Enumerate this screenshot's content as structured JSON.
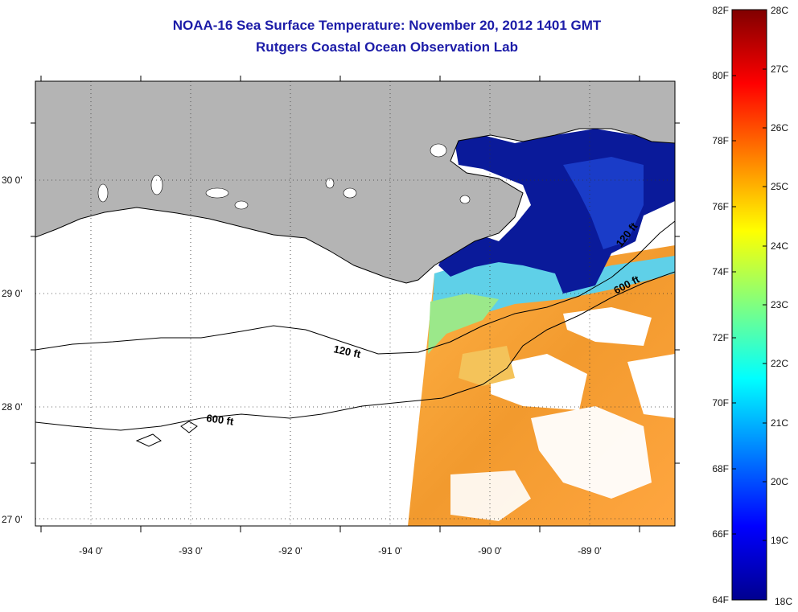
{
  "title": {
    "line1": "NOAA-16 Sea Surface Temperature:  November 20, 2012 1401 GMT",
    "line2": "Rutgers Coastal Ocean Observation Lab"
  },
  "map": {
    "lat_labels": [
      "30 0'",
      "29 0'",
      "28 0'",
      "27 0'"
    ],
    "lon_labels": [
      "-94 0'",
      "-93 0'",
      "-92 0'",
      "-91 0'",
      "-90 0'",
      "-89 0'"
    ],
    "contour_labels": {
      "shelf_120_west": "120 ft",
      "shelf_600_west": "600 ft",
      "shelf_120_east": "120 ft",
      "shelf_600_east": "600 ft"
    },
    "colors": {
      "land": "#b4b4b4",
      "coast": "#000000",
      "no_data": "#ffffff"
    }
  },
  "colorbar": {
    "fahrenheit_labels": [
      "82F",
      "80F",
      "78F",
      "76F",
      "74F",
      "72F",
      "70F",
      "68F",
      "66F",
      "64F"
    ],
    "celsius_labels": [
      "28C",
      "27C",
      "26C",
      "25C",
      "24C",
      "23C",
      "22C",
      "21C",
      "20C",
      "19C",
      "18C"
    ],
    "range_f": [
      64,
      82
    ],
    "range_c": [
      18,
      28
    ],
    "colormap": [
      "#00008f",
      "#0000ff",
      "#0080ff",
      "#00ffff",
      "#80ff80",
      "#ffff00",
      "#ff8000",
      "#ff0000",
      "#800000"
    ]
  }
}
